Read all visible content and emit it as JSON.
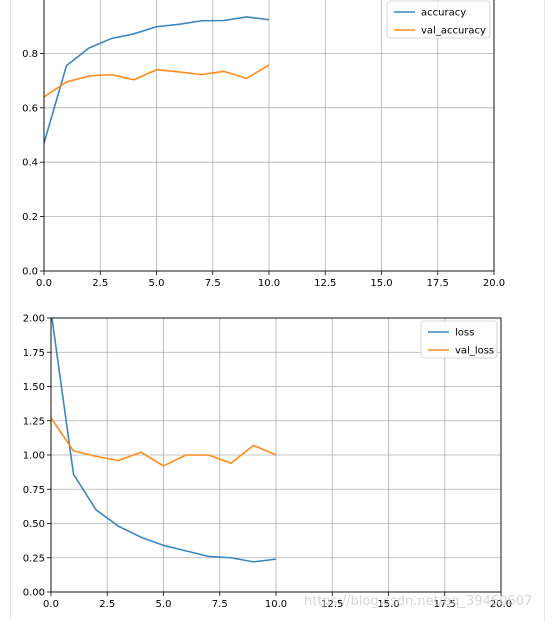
{
  "colors": {
    "series_1": "#3a87c0",
    "series_2": "#ff8c1a",
    "grid": "#b0b0b0",
    "axes": "#000000"
  },
  "watermark": "https://blog.csdn.net/qq_39460607",
  "chart_data": [
    {
      "type": "line",
      "title": "",
      "xlabel": "",
      "ylabel": "",
      "xlim": [
        0,
        20
      ],
      "ylim": [
        0,
        1.0
      ],
      "xticks": [
        "0.0",
        "2.5",
        "5.0",
        "7.5",
        "10.0",
        "12.5",
        "15.0",
        "17.5",
        "20.0"
      ],
      "xtick_values": [
        0,
        2.5,
        5,
        7.5,
        10,
        12.5,
        15,
        17.5,
        20
      ],
      "yticks": [
        "0.0",
        "0.2",
        "0.4",
        "0.6",
        "0.8"
      ],
      "ytick_values": [
        0,
        0.2,
        0.4,
        0.6,
        0.8
      ],
      "grid": true,
      "legend": "top-right",
      "x": [
        0,
        1,
        2,
        3,
        4,
        5,
        6,
        7,
        8,
        9,
        10
      ],
      "series": [
        {
          "name": "accuracy",
          "color": "#3a87c0",
          "values": [
            0.47,
            0.755,
            0.82,
            0.855,
            0.872,
            0.898,
            0.907,
            0.92,
            0.921,
            0.934,
            0.924
          ]
        },
        {
          "name": "val_accuracy",
          "color": "#ff8c1a",
          "values": [
            0.64,
            0.695,
            0.717,
            0.722,
            0.703,
            0.74,
            0.732,
            0.722,
            0.734,
            0.708,
            0.757
          ]
        }
      ]
    },
    {
      "type": "line",
      "title": "",
      "xlabel": "",
      "ylabel": "",
      "xlim": [
        0,
        20
      ],
      "ylim": [
        0,
        2.0
      ],
      "xticks": [
        "0.0",
        "2.5",
        "5.0",
        "7.5",
        "10.0",
        "12.5",
        "15.0",
        "17.5",
        "20.0"
      ],
      "xtick_values": [
        0,
        2.5,
        5,
        7.5,
        10,
        12.5,
        15,
        17.5,
        20
      ],
      "yticks": [
        "0.00",
        "0.25",
        "0.50",
        "0.75",
        "1.00",
        "1.25",
        "1.50",
        "1.75",
        "2.00"
      ],
      "ytick_values": [
        0,
        0.25,
        0.5,
        0.75,
        1.0,
        1.25,
        1.5,
        1.75,
        2.0
      ],
      "grid": true,
      "legend": "top-right",
      "x": [
        0,
        1,
        2,
        3,
        4,
        5,
        6,
        7,
        8,
        9,
        10
      ],
      "series": [
        {
          "name": "loss",
          "color": "#3a87c0",
          "values": [
            2.05,
            0.86,
            0.6,
            0.48,
            0.4,
            0.34,
            0.3,
            0.26,
            0.25,
            0.22,
            0.24
          ]
        },
        {
          "name": "val_loss",
          "color": "#ff8c1a",
          "values": [
            1.27,
            1.03,
            0.99,
            0.96,
            1.02,
            0.92,
            1.0,
            1.0,
            0.94,
            1.07,
            1.0
          ]
        }
      ]
    }
  ]
}
